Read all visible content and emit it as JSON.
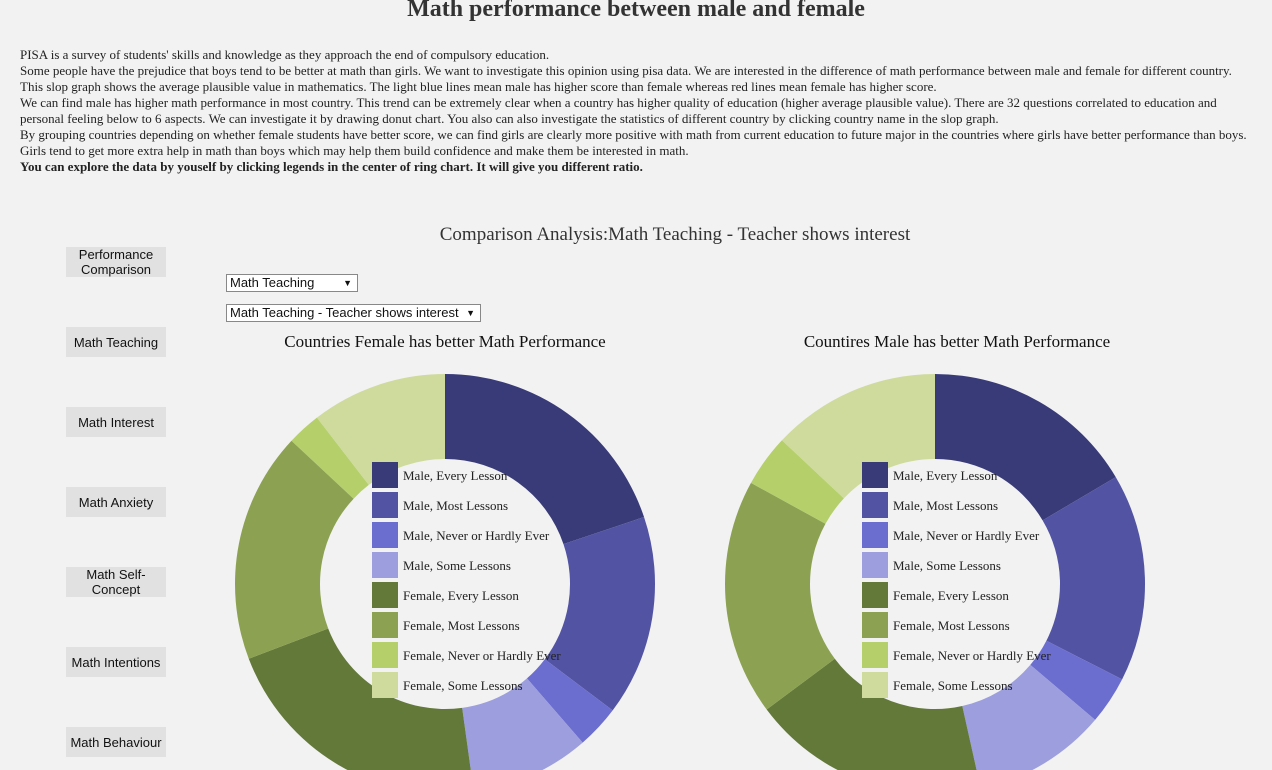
{
  "page_title": "Math performance between male and female",
  "intro": [
    "PISA is a survey of students' skills and knowledge as they approach the end of compulsory education.",
    "Some people have the prejudice that boys tend to be better at math than girls. We want to investigate this opinion using pisa data. We are interested in the difference of math performance between male and female for different country.",
    "This slop graph shows the average plausible value in mathematics. The light blue lines mean male has higher score than female whereas red lines mean female has higher score.",
    "We can find male has higher math performance in most country. This trend can be extremely clear when a country has higher quality of education (higher average plausible value). There are 32 questions correlated to education and personal feeling below to 6 aspects. We can investigate it by drawing donut chart. You also can also investigate the statistics of different country by clicking country name in the slop graph.",
    "By grouping countries depending on whether female students have better score, we can find girls are clearly more positive with math from current education to future major in the countries where girls have better performance than boys. Girls tend to get more extra help in math than boys which may help them build confidence and make them be interested in math."
  ],
  "intro_bold": "You can explore the data by youself by clicking legends in the center of ring chart. It will give you different ratio.",
  "analysis_title": "Comparison Analysis:Math Teaching - Teacher shows interest",
  "nav": [
    "Performance Comparison",
    "Math Teaching",
    "Math Interest",
    "Math Anxiety",
    "Math Self-Concept",
    "Math Intentions",
    "Math Behaviour"
  ],
  "select_aspect": "Math Teaching",
  "select_question": "Math Teaching - Teacher shows interest",
  "dropdown_arrow": "▼",
  "colors": {
    "Male, Every Lesson": "#393b79",
    "Male, Most Lessons": "#5254a3",
    "Male, Never or Hardly Ever": "#6b6ecf",
    "Male, Some Lessons": "#9c9ede",
    "Female, Every Lesson": "#637939",
    "Female, Most Lessons": "#8ca252",
    "Female, Never or Hardly Ever": "#b5cf6b",
    "Female, Some Lessons": "#cedb9c"
  },
  "chart_data": [
    {
      "type": "pie",
      "title": "Countries Female has better Math Performance",
      "legend_position": "center",
      "categories": [
        "Male, Every Lesson",
        "Male, Most Lessons",
        "Male, Never or Hardly Ever",
        "Male, Some Lessons",
        "Female, Every Lesson",
        "Female, Most Lessons",
        "Female, Never or Hardly Ever",
        "Female, Some Lessons"
      ],
      "values": [
        19.0,
        14.8,
        3.2,
        8.8,
        20.5,
        17.0,
        2.5,
        10.0
      ]
    },
    {
      "type": "pie",
      "title": "Countires Male has better Math Performance",
      "legend_position": "center",
      "categories": [
        "Male, Every Lesson",
        "Male, Most Lessons",
        "Male, Never or Hardly Ever",
        "Male, Some Lessons",
        "Female, Every Lesson",
        "Female, Most Lessons",
        "Female, Never or Hardly Ever",
        "Female, Some Lessons"
      ],
      "values": [
        16.5,
        16.0,
        3.7,
        10.3,
        18.3,
        18.2,
        4.0,
        13.0
      ]
    }
  ]
}
